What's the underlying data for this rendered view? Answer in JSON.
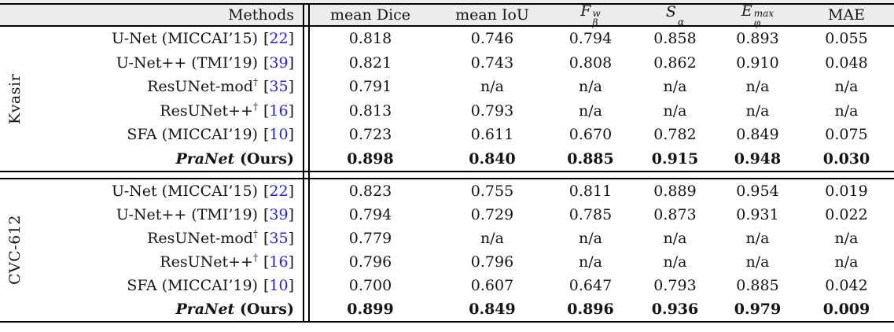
{
  "misc": {
    "cite_open": "[",
    "cite_close": "]",
    "na_text": "n/a"
  },
  "colors": {
    "header_background": "#ececec",
    "rule_black": "#000000",
    "citation_blue": "#2626cc",
    "text_black": "#141414"
  },
  "header": {
    "methods_label": "Methods",
    "metrics": [
      {
        "base": "mean Dice",
        "sup": "",
        "sub": ""
      },
      {
        "base": "mean IoU",
        "sup": "",
        "sub": ""
      },
      {
        "base": "F",
        "sup": "w",
        "sub": "β"
      },
      {
        "base": "S",
        "sup": "",
        "sub": "α"
      },
      {
        "base": "E",
        "sup": "max",
        "sub": "φ"
      },
      {
        "base": "MAE",
        "sup": "",
        "sub": ""
      }
    ]
  },
  "sections": [
    {
      "dataset": "Kvasir",
      "rows": [
        {
          "em": "",
          "name": "U-Net (MICCAI’15)",
          "dagger": "",
          "cite": "22",
          "bold": false,
          "values": [
            "0.818",
            "0.746",
            "0.794",
            "0.858",
            "0.893",
            "0.055"
          ]
        },
        {
          "em": "",
          "name": "U-Net++ (TMI’19)",
          "dagger": "",
          "cite": "39",
          "bold": false,
          "values": [
            "0.821",
            "0.743",
            "0.808",
            "0.862",
            "0.910",
            "0.048"
          ]
        },
        {
          "em": "",
          "name": "ResUNet-mod",
          "dagger": "†",
          "cite": "35",
          "bold": false,
          "values": [
            "0.791",
            "n/a",
            "n/a",
            "n/a",
            "n/a",
            "n/a"
          ]
        },
        {
          "em": "",
          "name": "ResUNet++",
          "dagger": "†",
          "cite": "16",
          "bold": false,
          "values": [
            "0.813",
            "0.793",
            "n/a",
            "n/a",
            "n/a",
            "n/a"
          ]
        },
        {
          "em": "",
          "name": "SFA (MICCAI’19)",
          "dagger": "",
          "cite": "10",
          "bold": false,
          "values": [
            "0.723",
            "0.611",
            "0.670",
            "0.782",
            "0.849",
            "0.075"
          ]
        },
        {
          "em": "PraNet",
          "name": " (Ours)",
          "dagger": "",
          "cite": "",
          "bold": true,
          "values": [
            "0.898",
            "0.840",
            "0.885",
            "0.915",
            "0.948",
            "0.030"
          ]
        }
      ]
    },
    {
      "dataset": "CVC-612",
      "rows": [
        {
          "em": "",
          "name": "U-Net (MICCAI’15)",
          "dagger": "",
          "cite": "22",
          "bold": false,
          "values": [
            "0.823",
            "0.755",
            "0.811",
            "0.889",
            "0.954",
            "0.019"
          ]
        },
        {
          "em": "",
          "name": "U-Net++ (TMI’19)",
          "dagger": "",
          "cite": "39",
          "bold": false,
          "values": [
            "0.794",
            "0.729",
            "0.785",
            "0.873",
            "0.931",
            "0.022"
          ]
        },
        {
          "em": "",
          "name": "ResUNet-mod",
          "dagger": "†",
          "cite": "35",
          "bold": false,
          "values": [
            "0.779",
            "n/a",
            "n/a",
            "n/a",
            "n/a",
            "n/a"
          ]
        },
        {
          "em": "",
          "name": "ResUNet++",
          "dagger": "†",
          "cite": "16",
          "bold": false,
          "values": [
            "0.796",
            "0.796",
            "n/a",
            "n/a",
            "n/a",
            "n/a"
          ]
        },
        {
          "em": "",
          "name": "SFA (MICCAI’19)",
          "dagger": "",
          "cite": "10",
          "bold": false,
          "values": [
            "0.700",
            "0.607",
            "0.647",
            "0.793",
            "0.885",
            "0.042"
          ]
        },
        {
          "em": "PraNet",
          "name": " (Ours)",
          "dagger": "",
          "cite": "",
          "bold": true,
          "values": [
            "0.899",
            "0.849",
            "0.896",
            "0.936",
            "0.979",
            "0.009"
          ]
        }
      ]
    }
  ]
}
